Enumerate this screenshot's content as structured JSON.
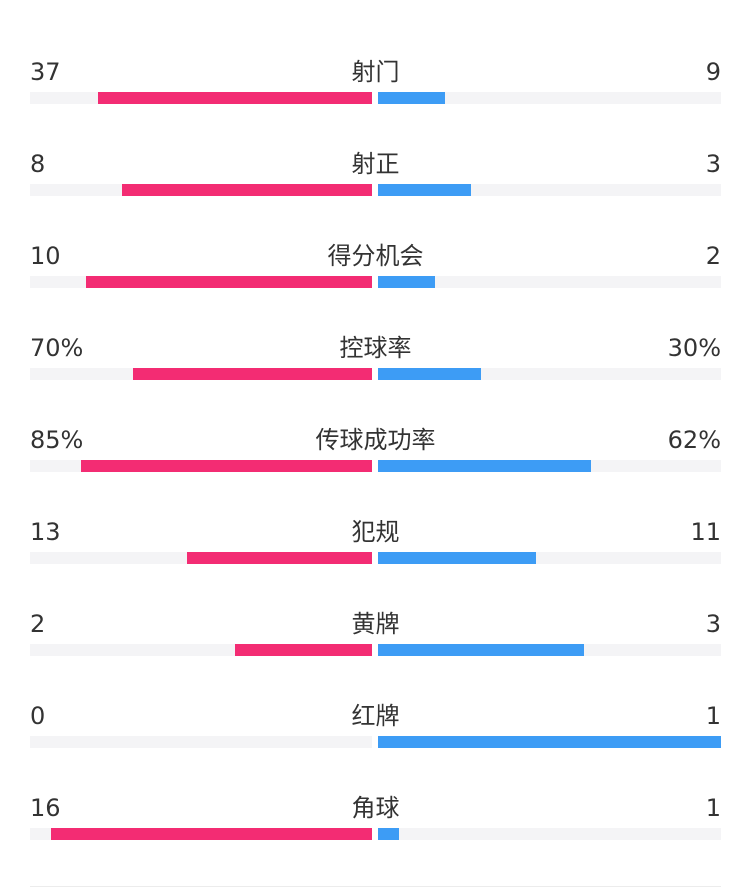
{
  "colors": {
    "home": "#f32c73",
    "away": "#3d9cf5",
    "track": "#f4f4f6",
    "text": "#333333"
  },
  "stats": [
    {
      "name": "射门",
      "left": "37",
      "right": "9",
      "left_fraction": 0.8,
      "right_fraction": 0.195
    },
    {
      "name": "射正",
      "left": "8",
      "right": "3",
      "left_fraction": 0.73,
      "right_fraction": 0.27
    },
    {
      "name": "得分机会",
      "left": "10",
      "right": "2",
      "left_fraction": 0.835,
      "right_fraction": 0.165
    },
    {
      "name": "控球率",
      "left": "70%",
      "right": "30%",
      "left_fraction": 0.7,
      "right_fraction": 0.3
    },
    {
      "name": "传球成功率",
      "left": "85%",
      "right": "62%",
      "left_fraction": 0.85,
      "right_fraction": 0.62
    },
    {
      "name": "犯规",
      "left": "13",
      "right": "11",
      "left_fraction": 0.54,
      "right_fraction": 0.46
    },
    {
      "name": "黄牌",
      "left": "2",
      "right": "3",
      "left_fraction": 0.4,
      "right_fraction": 0.6
    },
    {
      "name": "红牌",
      "left": "0",
      "right": "1",
      "left_fraction": 0.0,
      "right_fraction": 1.0
    },
    {
      "name": "角球",
      "left": "16",
      "right": "1",
      "left_fraction": 0.94,
      "right_fraction": 0.06
    }
  ]
}
